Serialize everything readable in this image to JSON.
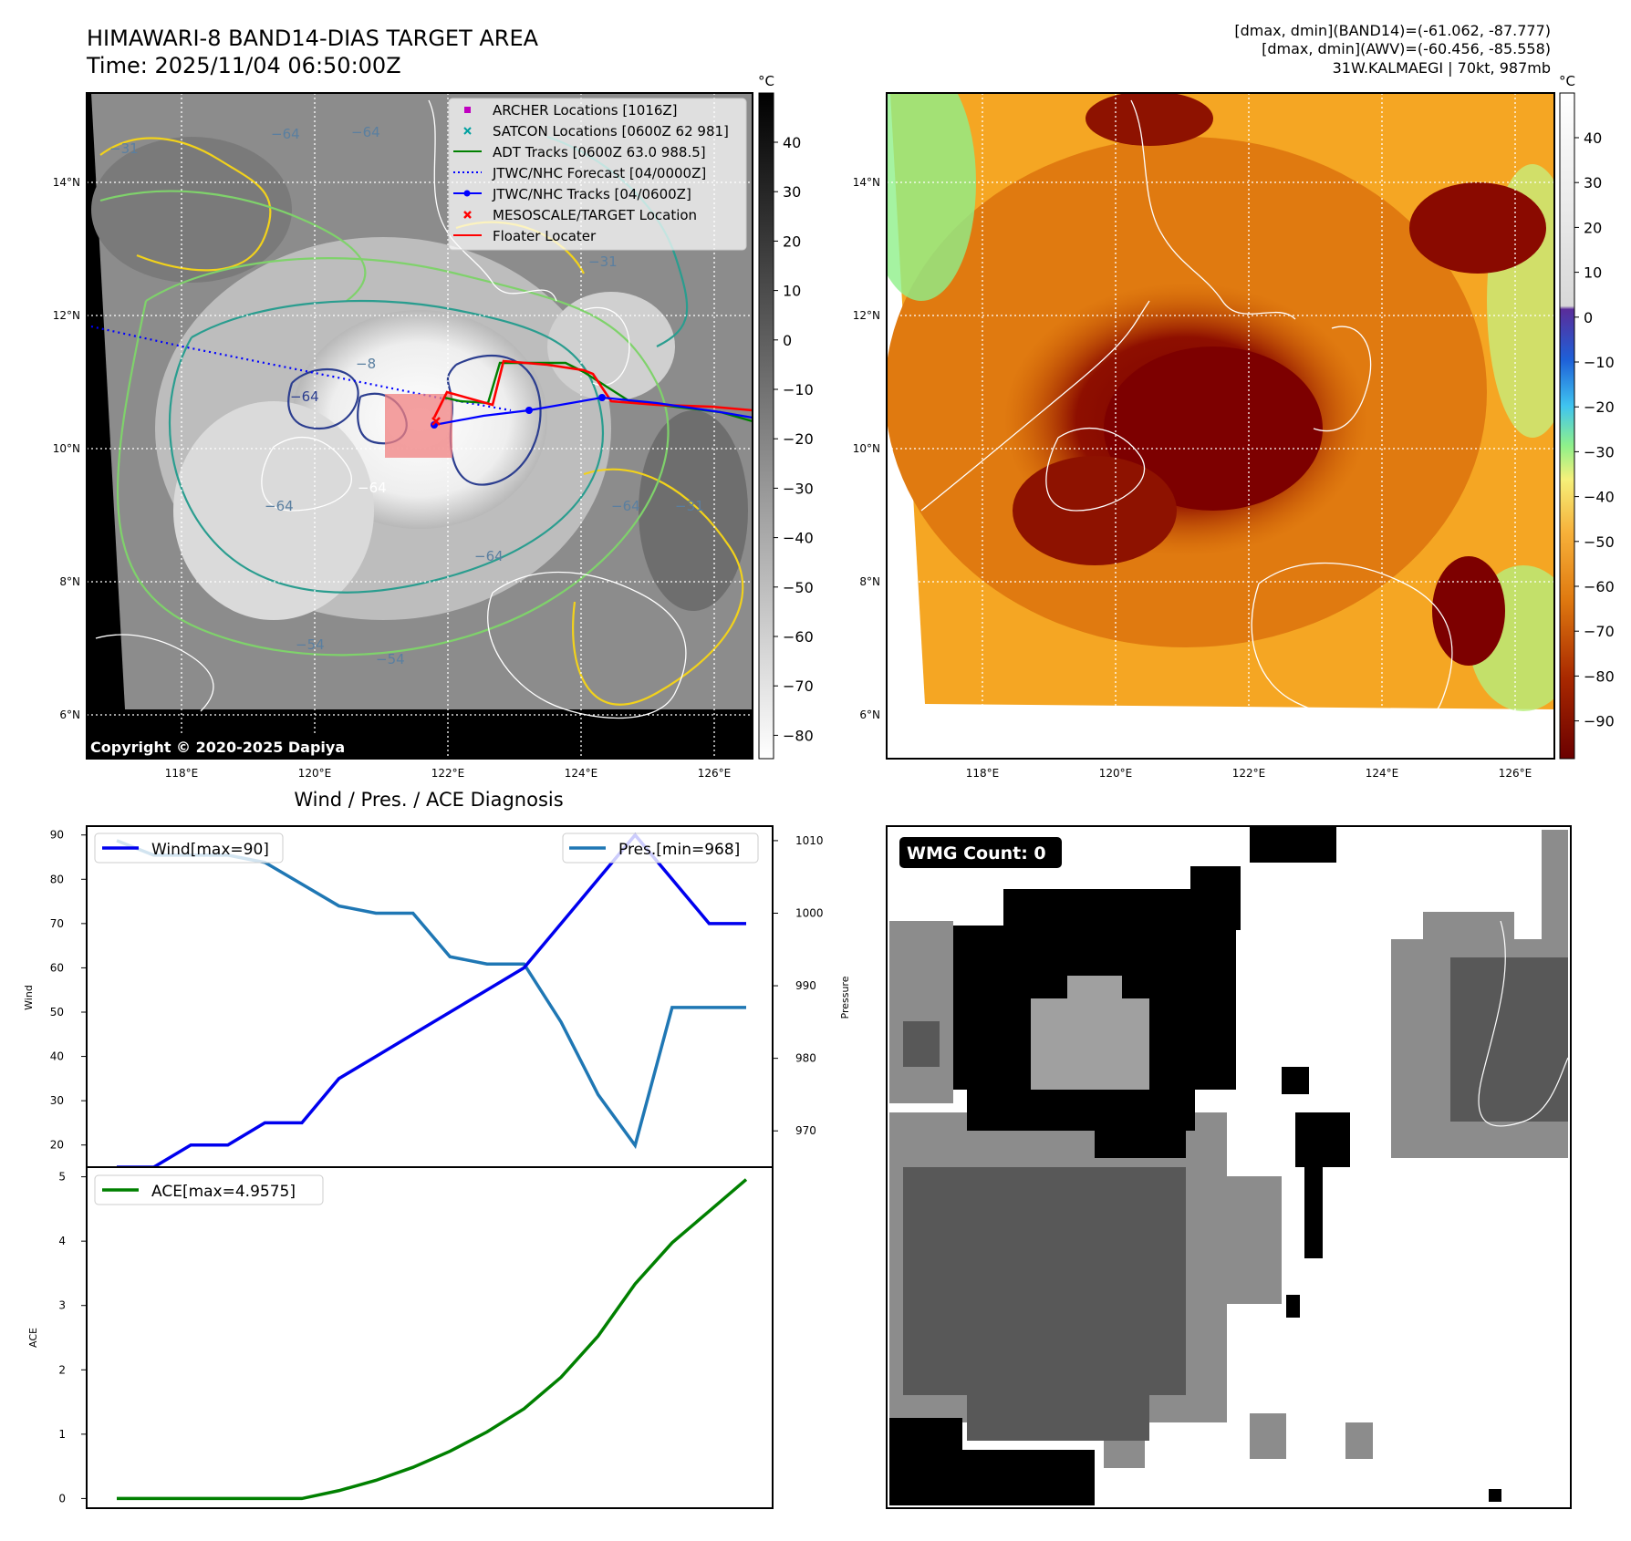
{
  "header": {
    "title_line1": "HIMAWARI-8 BAND14-DIAS TARGET AREA",
    "title_line2": "Time: 2025/11/04 06:50:00Z",
    "stat_line1": "[dmax, dmin](BAND14)=(-61.062, -87.777)",
    "stat_line2": "[dmax, dmin](AWV)=(-60.456, -85.558)",
    "stat_line3": "31W.KALMAEGI | 70kt, 987mb"
  },
  "map_axes": {
    "lon_ticks": [
      "118°E",
      "120°E",
      "122°E",
      "124°E",
      "126°E"
    ],
    "lat_ticks": [
      "14°N",
      "12°N",
      "10°N",
      "8°N",
      "6°N"
    ]
  },
  "panel_ir": {
    "copyright": "Copyright © 2020-2025 Dapiya",
    "colorbar_unit": "°C",
    "colorbar_ticks": [
      "40",
      "30",
      "20",
      "10",
      "0",
      "−10",
      "−20",
      "−30",
      "−40",
      "−50",
      "−60",
      "−70",
      "−80"
    ],
    "contour_labels": [
      "−64",
      "−64",
      "−64",
      "−64",
      "−64",
      "−64",
      "−54",
      "−54",
      "−31",
      "−31",
      "−31",
      "−8",
      "−64"
    ],
    "legend": [
      {
        "label": "ARCHER Locations [1016Z]",
        "marker": "square",
        "color": "#c000c0"
      },
      {
        "label": "SATCON Locations [0600Z 62 981]",
        "marker": "x",
        "color": "#00a0a0"
      },
      {
        "label": "ADT Tracks [0600Z 63.0 988.5]",
        "marker": "line",
        "color": "#008000"
      },
      {
        "label": "JTWC/NHC Forecast [04/0000Z]",
        "marker": "dotted",
        "color": "#0000ff"
      },
      {
        "label": "JTWC/NHC Tracks [04/0600Z]",
        "marker": "line-dot",
        "color": "#0000ff"
      },
      {
        "label": "MESOSCALE/TARGET Location",
        "marker": "x",
        "color": "#ff0000"
      },
      {
        "label": "Floater Locater",
        "marker": "line",
        "color": "#ff0000"
      }
    ]
  },
  "panel_wv": {
    "colorbar_unit": "°C",
    "colorbar_ticks": [
      "40",
      "30",
      "20",
      "10",
      "0",
      "−10",
      "−20",
      "−30",
      "−40",
      "−50",
      "−60",
      "−70",
      "−80",
      "−90"
    ]
  },
  "panel_wmg": {
    "badge": "WMG Count: 0"
  },
  "colors": {
    "wind": "#0000ee",
    "pressure": "#1f77b4",
    "ace": "#008000",
    "badge_bg": "#000000"
  },
  "chart_data": [
    {
      "type": "line",
      "title": "Wind / Pres. / ACE Diagnosis",
      "ylabel": "Wind",
      "ylabel_right": "Pressure",
      "ylim": [
        15,
        92
      ],
      "ylim_right": [
        965,
        1012
      ],
      "yticks": [
        "90",
        "80",
        "70",
        "60",
        "50",
        "40",
        "30",
        "20"
      ],
      "yticks_right": [
        "1010",
        "1000",
        "990",
        "980",
        "970"
      ],
      "series": [
        {
          "name": "Wind[max=90]",
          "axis": "left",
          "values": [
            15,
            15,
            20,
            20,
            25,
            25,
            35,
            40,
            45,
            50,
            55,
            60,
            70,
            80,
            90,
            80,
            70,
            70
          ]
        },
        {
          "name": "Pres.[min=968]",
          "axis": "right",
          "values": [
            1010,
            1008,
            1008,
            1008,
            1007,
            1004,
            1001,
            1000,
            1000,
            994,
            993,
            993,
            985,
            975,
            968,
            987,
            987,
            987
          ]
        }
      ]
    },
    {
      "type": "line",
      "ylabel": "ACE",
      "ylim": [
        -0.15,
        5.15
      ],
      "yticks": [
        "5",
        "4",
        "3",
        "2",
        "1",
        "0"
      ],
      "series": [
        {
          "name": "ACE[max=4.9575]",
          "values": [
            0,
            0,
            0,
            0,
            0,
            0,
            0.1225,
            0.2825,
            0.485,
            0.735,
            1.035,
            1.395,
            1.885,
            2.525,
            3.335,
            3.975,
            4.465,
            4.9575
          ]
        }
      ]
    }
  ]
}
